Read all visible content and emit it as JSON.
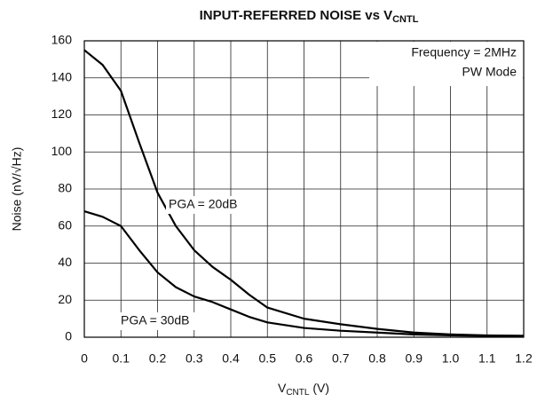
{
  "chart_data": {
    "type": "line",
    "title": {
      "text": "INPUT-REFERRED NOISE vs V",
      "subscript": "CNTL"
    },
    "x_label": {
      "text": "V",
      "subscript": "CNTL",
      "suffix": " (V)"
    },
    "y_label": "Noise (nV/√Hz)",
    "annotations": [
      "Frequency = 2MHz",
      "PW Mode"
    ],
    "x": [
      0,
      0.05,
      0.1,
      0.15,
      0.2,
      0.25,
      0.3,
      0.35,
      0.4,
      0.45,
      0.5,
      0.6,
      0.7,
      0.8,
      0.9,
      1.0,
      1.1,
      1.2
    ],
    "series": [
      {
        "name": "PGA = 20dB",
        "color": "#000000",
        "values": [
          155,
          147,
          133,
          105,
          78,
          60,
          47,
          38,
          31,
          23,
          16,
          10,
          7,
          4.5,
          2.5,
          1.5,
          1,
          0.8
        ]
      },
      {
        "name": "PGA = 30dB",
        "color": "#000000",
        "values": [
          68,
          65,
          60,
          47,
          35,
          27,
          22,
          19,
          15,
          11,
          8,
          5,
          3.5,
          2.5,
          1.5,
          1,
          0.7,
          0.5
        ]
      }
    ],
    "xlim": [
      0,
      1.2
    ],
    "xticks": [
      0,
      0.1,
      0.2,
      0.3,
      0.4,
      0.5,
      0.6,
      0.7,
      0.8,
      0.9,
      {
        "value": 1.0,
        "label": "1.0"
      },
      1.1,
      1.2
    ],
    "ylim": [
      0,
      160
    ],
    "yticks": [
      0,
      20,
      40,
      60,
      80,
      100,
      120,
      140,
      160
    ],
    "grid": true
  }
}
